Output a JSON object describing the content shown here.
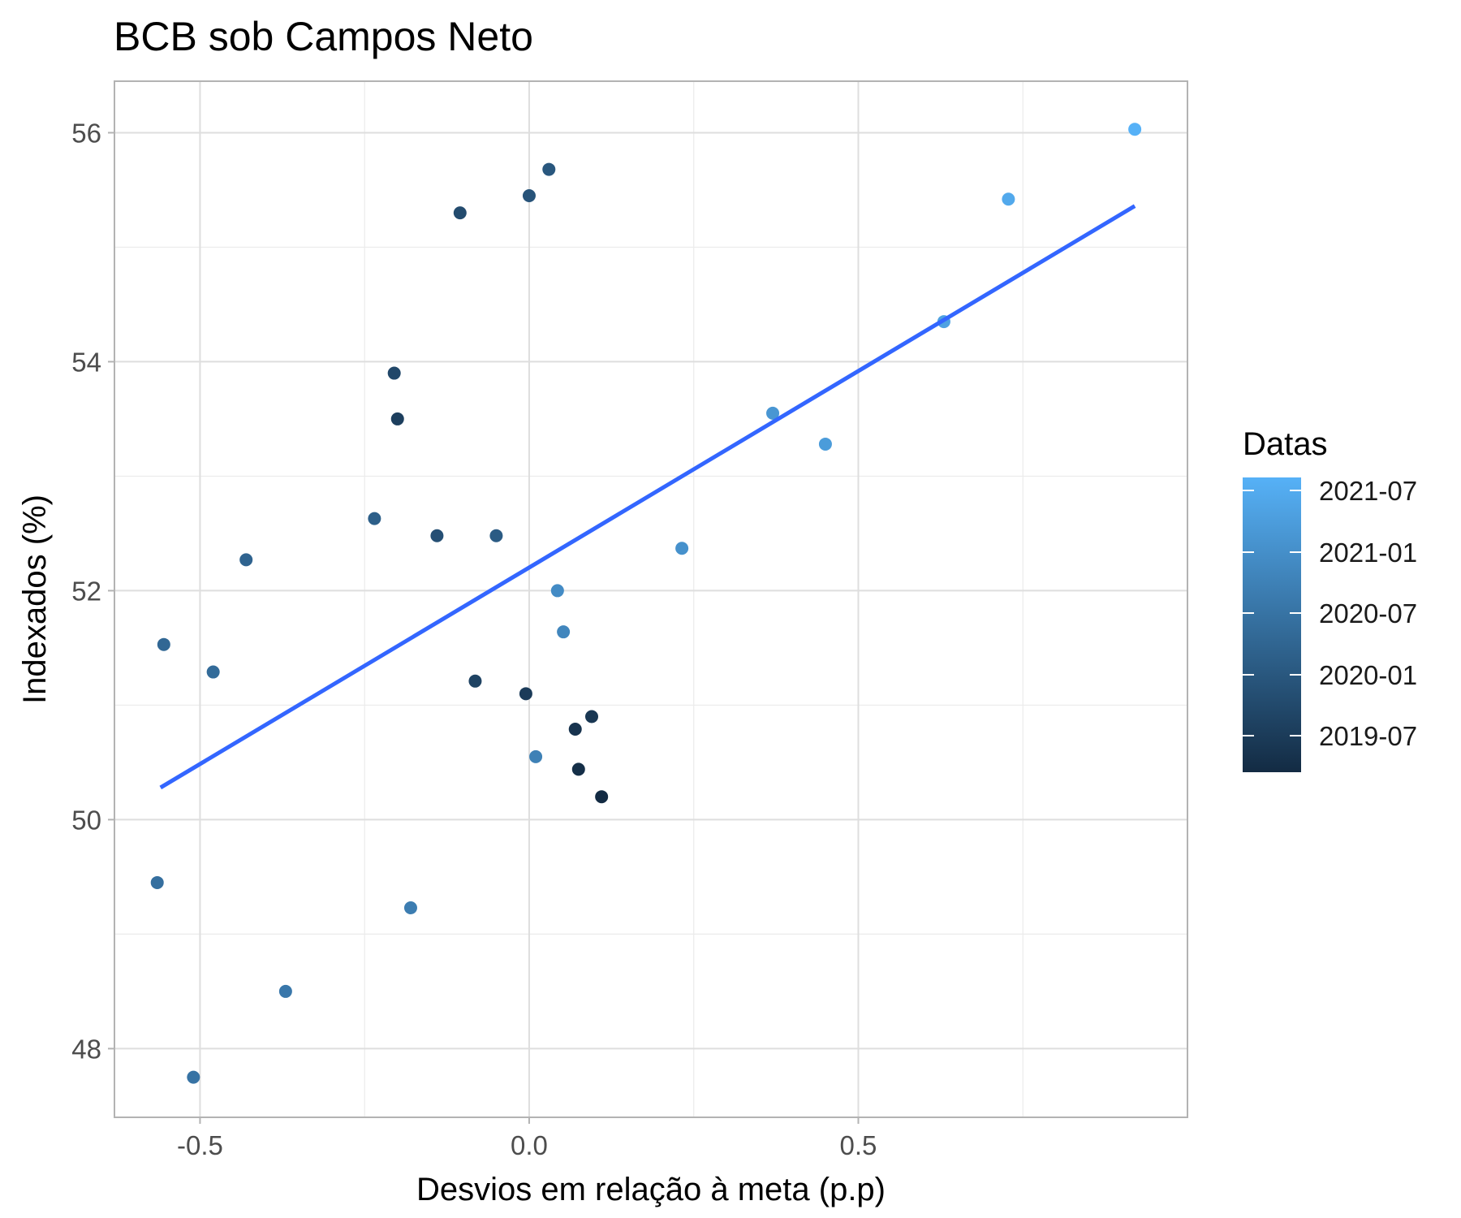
{
  "chart_data": {
    "type": "scatter",
    "title": "BCB sob Campos Neto",
    "xlabel": "Desvios em relação à meta (p.p)",
    "ylabel": "Indexados (%)",
    "xlim": [
      -0.63,
      1.0
    ],
    "ylim": [
      47.4,
      56.45
    ],
    "x_ticks": [
      -0.5,
      0.0,
      0.5
    ],
    "x_tick_labels": [
      "-0.5",
      "0.0",
      "0.5"
    ],
    "y_ticks": [
      48,
      50,
      52,
      54,
      56
    ],
    "y_tick_labels": [
      "48",
      "50",
      "52",
      "54",
      "56"
    ],
    "grid": true,
    "legend": {
      "title": "Datas",
      "placement": "right",
      "type": "colorbar",
      "labels": [
        "2021-07",
        "2021-01",
        "2020-07",
        "2020-01",
        "2019-07"
      ],
      "color_low": "#132B43",
      "color_high": "#56B1F7"
    },
    "trend_line": {
      "color": "#3366FF",
      "x": [
        -0.56,
        0.92
      ],
      "y": [
        50.28,
        55.36
      ]
    },
    "points": [
      {
        "x": 0.11,
        "y": 50.2,
        "t": 0.0
      },
      {
        "x": 0.075,
        "y": 50.44,
        "t": 0.03
      },
      {
        "x": 0.07,
        "y": 50.79,
        "t": 0.06
      },
      {
        "x": 0.095,
        "y": 50.9,
        "t": 0.09
      },
      {
        "x": -0.005,
        "y": 51.1,
        "t": 0.12
      },
      {
        "x": -0.2,
        "y": 53.5,
        "t": 0.15
      },
      {
        "x": -0.082,
        "y": 51.21,
        "t": 0.18
      },
      {
        "x": -0.205,
        "y": 53.9,
        "t": 0.21
      },
      {
        "x": -0.105,
        "y": 55.3,
        "t": 0.24
      },
      {
        "x": -0.14,
        "y": 52.48,
        "t": 0.27
      },
      {
        "x": 0.0,
        "y": 55.45,
        "t": 0.3
      },
      {
        "x": 0.03,
        "y": 55.68,
        "t": 0.33
      },
      {
        "x": -0.05,
        "y": 52.48,
        "t": 0.36
      },
      {
        "x": -0.235,
        "y": 52.63,
        "t": 0.39
      },
      {
        "x": -0.43,
        "y": 52.27,
        "t": 0.42
      },
      {
        "x": -0.555,
        "y": 51.53,
        "t": 0.45
      },
      {
        "x": -0.48,
        "y": 51.29,
        "t": 0.48
      },
      {
        "x": -0.565,
        "y": 49.45,
        "t": 0.51
      },
      {
        "x": -0.51,
        "y": 47.75,
        "t": 0.54
      },
      {
        "x": -0.37,
        "y": 48.5,
        "t": 0.57
      },
      {
        "x": -0.18,
        "y": 49.23,
        "t": 0.61
      },
      {
        "x": 0.01,
        "y": 50.55,
        "t": 0.64
      },
      {
        "x": 0.052,
        "y": 51.64,
        "t": 0.68
      },
      {
        "x": 0.043,
        "y": 52.0,
        "t": 0.72
      },
      {
        "x": 0.232,
        "y": 52.37,
        "t": 0.76
      },
      {
        "x": 0.37,
        "y": 53.55,
        "t": 0.8
      },
      {
        "x": 0.45,
        "y": 53.28,
        "t": 0.84
      },
      {
        "x": 0.63,
        "y": 54.35,
        "t": 0.88
      },
      {
        "x": 0.728,
        "y": 55.42,
        "t": 0.94
      },
      {
        "x": 0.92,
        "y": 56.03,
        "t": 1.0
      }
    ]
  }
}
